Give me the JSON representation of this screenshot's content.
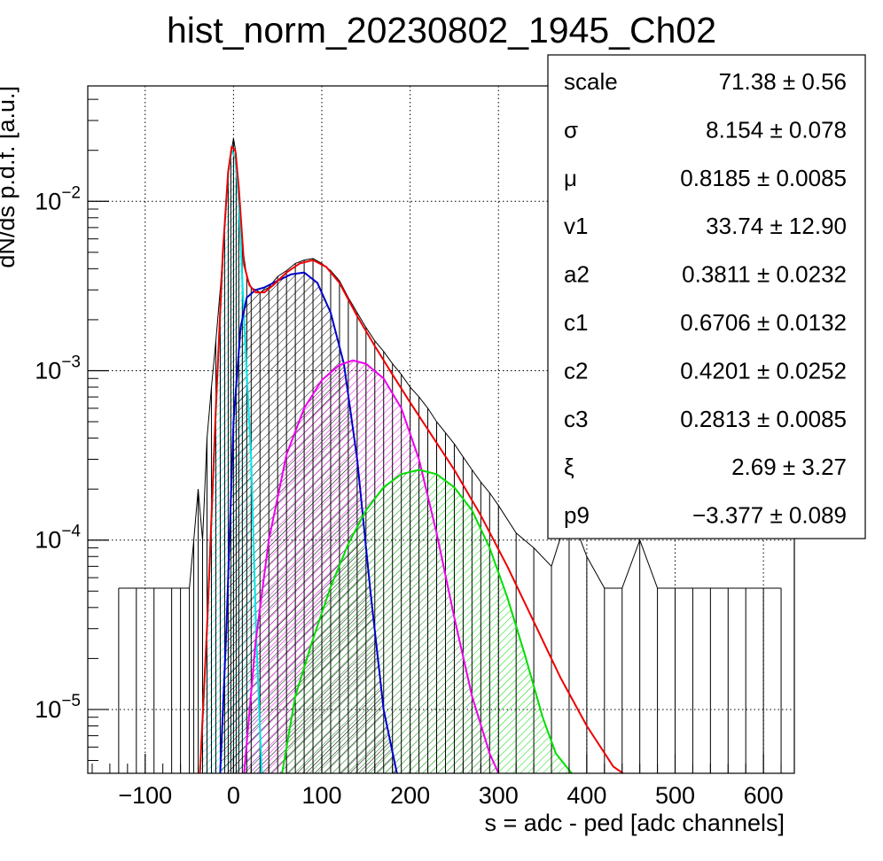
{
  "chart_data": {
    "type": "line",
    "title": "hist_norm_20230802_1945_Ch02",
    "xlabel": "s = adc - ped [adc channels]",
    "ylabel": "dN/ds p.d.f. [a.u.]",
    "xlim": [
      -165,
      635
    ],
    "ylim": [
      4.2e-06,
      0.048
    ],
    "yscale": "log",
    "grid": true,
    "x_ticks": [
      -100,
      0,
      100,
      200,
      300,
      400,
      500,
      600
    ],
    "x_tick_labels": [
      "−100",
      "0",
      "100",
      "200",
      "300",
      "400",
      "500",
      "600"
    ],
    "y_ticks": [
      1e-05,
      0.0001,
      0.001,
      0.01
    ],
    "y_tick_labels": [
      {
        "base": "10",
        "exp": "−5"
      },
      {
        "base": "10",
        "exp": "−4"
      },
      {
        "base": "10",
        "exp": "−3"
      },
      {
        "base": "10",
        "exp": "−2"
      }
    ],
    "series": [
      {
        "name": "",
        "color": "#00e5e5",
        "hatch": true,
        "x": [
          -38,
          -30,
          -20,
          -12,
          -6,
          -2,
          2,
          6,
          12,
          20,
          26,
          32
        ],
        "y": [
          4.2e-06,
          3e-05,
          0.0006,
          0.005,
          0.015,
          0.02,
          0.018,
          0.01,
          0.002,
          0.0003,
          2.5e-05,
          4.2e-06
        ]
      },
      {
        "name": "",
        "color": "#0000cc",
        "hatch": true,
        "x": [
          -15,
          -8,
          0,
          8,
          15,
          25,
          35,
          50,
          65,
          80,
          95,
          110,
          125,
          140,
          155,
          170,
          185
        ],
        "y": [
          4.2e-06,
          3e-05,
          0.0005,
          0.0018,
          0.0027,
          0.003,
          0.0031,
          0.0034,
          0.0037,
          0.0038,
          0.0033,
          0.0022,
          0.0011,
          0.0003,
          5e-05,
          1e-05,
          4.2e-06
        ]
      },
      {
        "name": "",
        "color": "#ee00ee",
        "hatch": true,
        "x": [
          12,
          25,
          40,
          60,
          80,
          100,
          120,
          135,
          150,
          170,
          190,
          210,
          230,
          250,
          270,
          290,
          300
        ],
        "y": [
          4.2e-06,
          2.5e-05,
          0.0001,
          0.00032,
          0.0006,
          0.00088,
          0.00108,
          0.00115,
          0.0011,
          0.0009,
          0.0006,
          0.0003,
          0.00011,
          3.5e-05,
          1.2e-05,
          5.5e-06,
          4.2e-06
        ]
      },
      {
        "name": "",
        "color": "#00dd00",
        "hatch": true,
        "x": [
          55,
          70,
          90,
          110,
          130,
          150,
          170,
          190,
          210,
          230,
          250,
          270,
          290,
          310,
          330,
          350,
          365,
          383
        ],
        "y": [
          4.2e-06,
          1.2e-05,
          2.6e-05,
          5.3e-05,
          9.5e-05,
          0.00015,
          0.000205,
          0.000245,
          0.00026,
          0.000245,
          0.000205,
          0.00015,
          9e-05,
          4.6e-05,
          2.1e-05,
          9e-06,
          5.5e-06,
          4.2e-06
        ]
      },
      {
        "name": "",
        "color": "#ee0000",
        "hatch": false,
        "x": [
          -38,
          -30,
          -20,
          -12,
          -6,
          -2,
          2,
          6,
          12,
          18,
          25,
          35,
          45,
          60,
          75,
          90,
          105,
          120,
          140,
          160,
          180,
          200,
          220,
          250,
          280,
          310,
          340,
          370,
          400,
          430,
          441
        ],
        "y": [
          4.2e-06,
          3e-05,
          0.0006,
          0.005,
          0.015,
          0.021,
          0.02,
          0.012,
          0.0042,
          0.0032,
          0.0029,
          0.0029,
          0.0032,
          0.0038,
          0.0043,
          0.0045,
          0.0041,
          0.0033,
          0.0021,
          0.0014,
          0.00095,
          0.00065,
          0.00045,
          0.00026,
          0.00014,
          7e-05,
          3.3e-05,
          1.55e-05,
          8e-06,
          4.6e-06,
          4.2e-06
        ]
      }
    ],
    "histogram": {
      "color": "#000000",
      "x": [
        -130,
        -110,
        -90,
        -70,
        -60,
        -50,
        -45,
        -40,
        -35,
        -30,
        -25,
        -20,
        -15,
        -10,
        -6,
        -3,
        0,
        3,
        6,
        10,
        15,
        20,
        30,
        40,
        50,
        60,
        70,
        80,
        90,
        100,
        110,
        120,
        130,
        140,
        150,
        160,
        170,
        180,
        190,
        200,
        210,
        220,
        230,
        240,
        250,
        260,
        270,
        280,
        290,
        300,
        320,
        340,
        360,
        380,
        400,
        420,
        440,
        460,
        480,
        500,
        520,
        540,
        560,
        580,
        600,
        620
      ],
      "y": [
        5.2e-05,
        5.2e-05,
        5.2e-05,
        5.2e-05,
        5.2e-05,
        5.2e-05,
        0.0001,
        0.0002,
        0.0001,
        0.0004,
        0.0008,
        0.0015,
        0.003,
        0.007,
        0.015,
        0.019,
        0.0235,
        0.019,
        0.012,
        0.0055,
        0.0036,
        0.0031,
        0.0029,
        0.0031,
        0.0036,
        0.0039,
        0.0043,
        0.0045,
        0.0046,
        0.0043,
        0.0039,
        0.0034,
        0.0027,
        0.0022,
        0.0018,
        0.0015,
        0.0013,
        0.0011,
        0.00095,
        0.0008,
        0.0007,
        0.0006,
        0.0005,
        0.00043,
        0.00037,
        0.00031,
        0.00026,
        0.00022,
        0.00019,
        0.00016,
        0.00011,
        9e-05,
        7e-05,
        0.00015,
        8e-05,
        5.2e-05,
        5.2e-05,
        0.0001,
        5.2e-05,
        5.2e-05,
        5.2e-05,
        5.2e-05,
        5.2e-05,
        5.2e-05,
        5.2e-05,
        5.2e-05
      ]
    },
    "stats": [
      {
        "name": "scale",
        "value": "71.38",
        "error": "0.56"
      },
      {
        "name": "σ",
        "value": "8.154",
        "error": "0.078"
      },
      {
        "name": "μ",
        "value": "0.8185",
        "error": "0.0085"
      },
      {
        "name": "v1",
        "value": "33.74",
        "error": "12.90"
      },
      {
        "name": "a2",
        "value": "0.3811",
        "error": "0.0232"
      },
      {
        "name": "c1",
        "value": "0.6706",
        "error": "0.0132"
      },
      {
        "name": "c2",
        "value": "0.4201",
        "error": "0.0252"
      },
      {
        "name": "c3",
        "value": "0.2813",
        "error": "0.0085"
      },
      {
        "name": "ξ",
        "value": "2.69",
        "error": "3.27"
      },
      {
        "name": "p9",
        "value": "−3.377",
        "error": "0.089"
      }
    ],
    "stats_pm": "±",
    "stats_placement": "top-right"
  }
}
